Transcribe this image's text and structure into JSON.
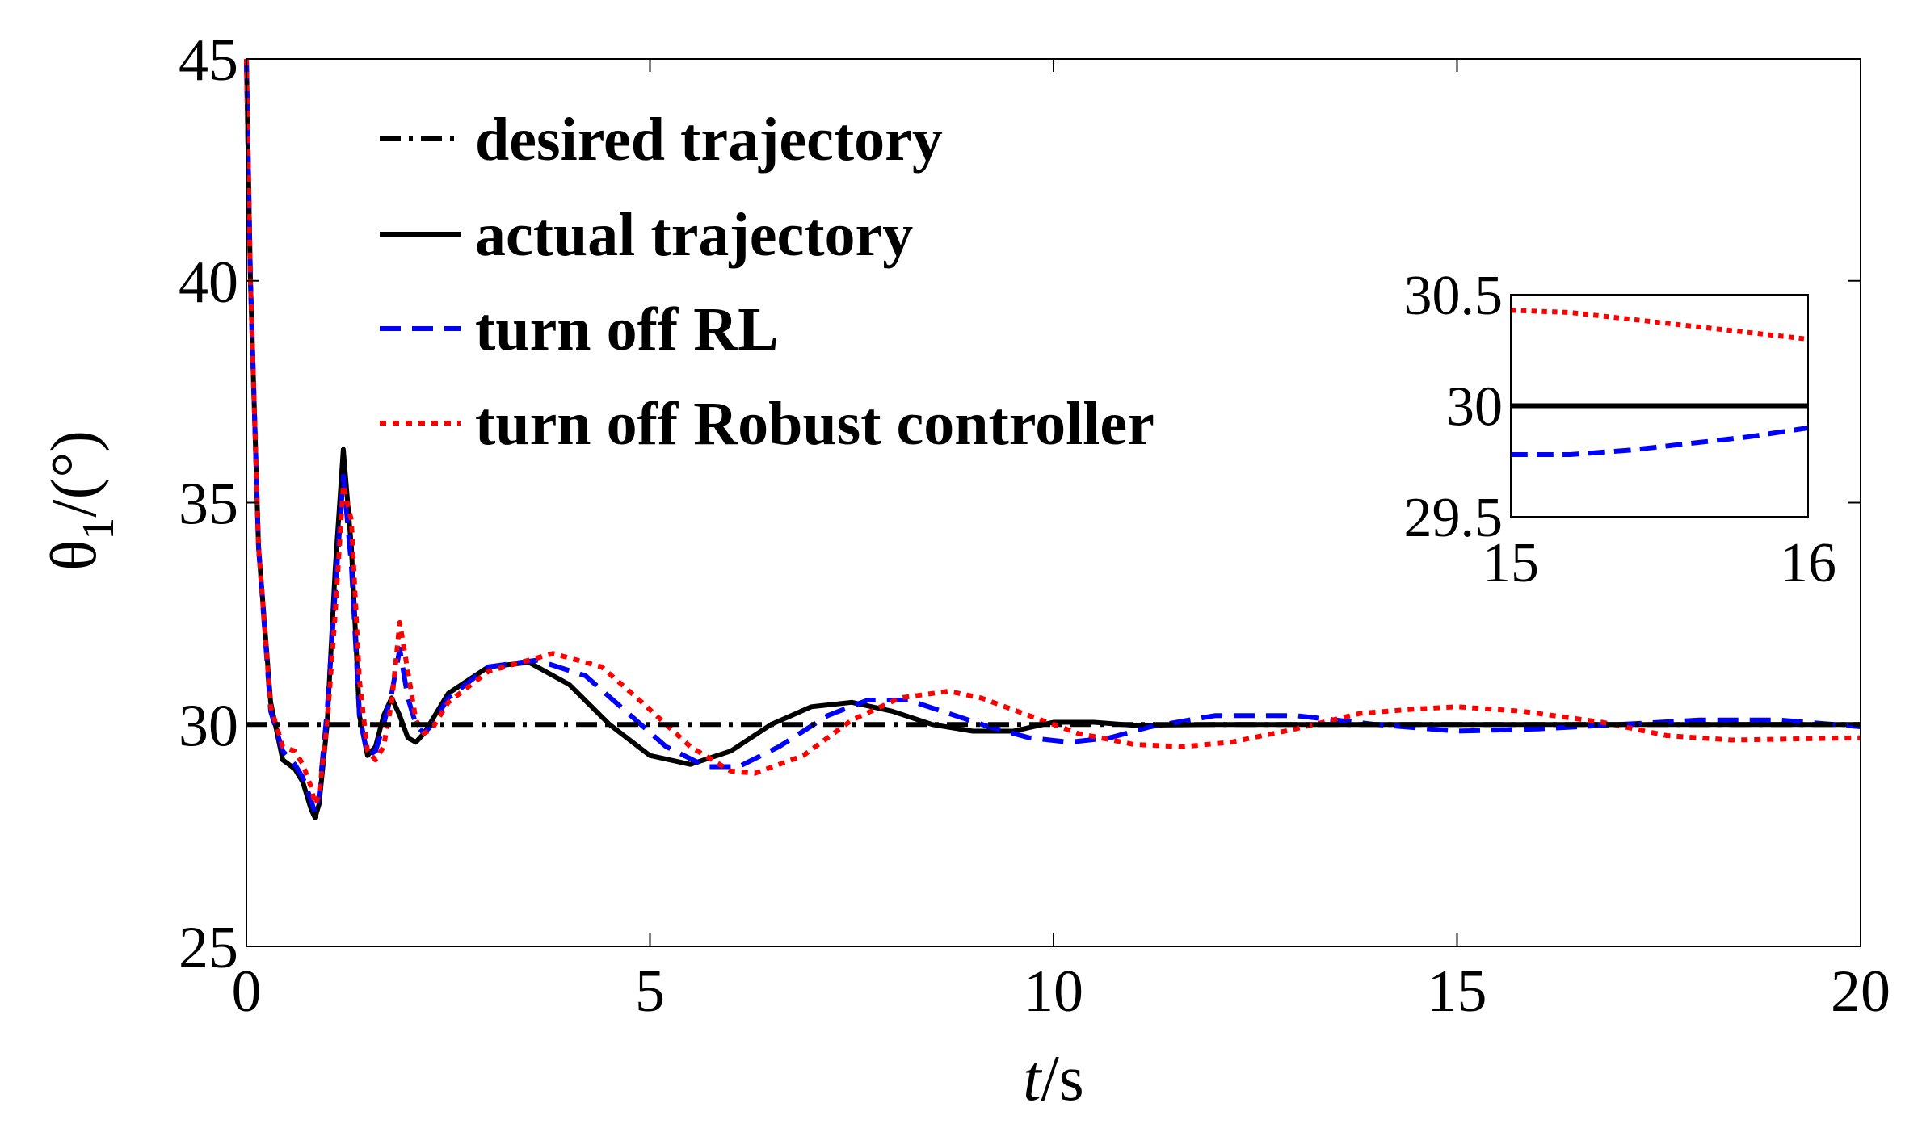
{
  "chart_data": [
    {
      "type": "line",
      "title": "",
      "xlabel_italic": "t",
      "xlabel_unit": "/s",
      "ylabel_symbol": "θ",
      "ylabel_subscript": "1",
      "ylabel_unit": "/(°)",
      "xlim": [
        0,
        20
      ],
      "ylim": [
        25,
        45
      ],
      "xticks": [
        "0",
        "5",
        "10",
        "15",
        "20"
      ],
      "yticks": [
        "25",
        "30",
        "35",
        "40",
        "45"
      ],
      "grid": false,
      "legend_position": "top-left",
      "series": [
        {
          "name": "desired trajectory",
          "color": "#000000",
          "style": "dash-dot",
          "x": [
            0,
            20
          ],
          "y": [
            30,
            30
          ]
        },
        {
          "name": "actual trajectory",
          "color": "#000000",
          "style": "solid",
          "x": [
            0,
            0.05,
            0.15,
            0.3,
            0.45,
            0.6,
            0.7,
            0.8,
            0.85,
            0.9,
            1.0,
            1.1,
            1.2,
            1.3,
            1.4,
            1.5,
            1.6,
            1.7,
            1.8,
            1.9,
            2.0,
            2.1,
            2.2,
            2.3,
            2.5,
            3.0,
            3.5,
            4.0,
            4.5,
            5.0,
            5.5,
            6.0,
            6.5,
            7.0,
            7.5,
            8.0,
            8.5,
            9.0,
            9.5,
            10.0,
            10.5,
            11.0,
            12.0,
            13.0,
            14.0,
            15.0,
            16.0,
            17.0,
            18.0,
            19.0,
            20.0
          ],
          "y": [
            45,
            40,
            34,
            30.5,
            29.2,
            29.0,
            28.7,
            28.1,
            27.9,
            28.2,
            30.0,
            33.5,
            36.2,
            34.0,
            30.2,
            29.3,
            29.5,
            30.2,
            30.6,
            30.2,
            29.7,
            29.6,
            29.8,
            30.1,
            30.7,
            31.3,
            31.4,
            30.9,
            30.0,
            29.3,
            29.1,
            29.4,
            30.0,
            30.4,
            30.5,
            30.3,
            30.0,
            29.85,
            29.85,
            30.05,
            30.05,
            29.98,
            30.0,
            30.0,
            30.0,
            30.0,
            30.0,
            30.0,
            30.0,
            30.0,
            30.0
          ]
        },
        {
          "name": "turn off RL",
          "color": "#0000ff",
          "style": "dashed",
          "x": [
            0,
            0.05,
            0.15,
            0.3,
            0.45,
            0.6,
            0.7,
            0.8,
            0.85,
            0.9,
            1.0,
            1.1,
            1.2,
            1.3,
            1.4,
            1.5,
            1.6,
            1.7,
            1.8,
            1.9,
            2.0,
            2.1,
            2.2,
            2.3,
            2.5,
            3.0,
            3.6,
            4.2,
            4.7,
            5.2,
            5.7,
            6.1,
            6.6,
            7.2,
            7.7,
            8.2,
            8.7,
            9.2,
            9.7,
            10.2,
            10.7,
            11.2,
            12.0,
            13.0,
            14.0,
            15.0,
            16.0,
            17.0,
            18.0,
            19.0,
            20.0
          ],
          "y": [
            45,
            40,
            34,
            30.3,
            29.4,
            29.1,
            28.8,
            28.3,
            28.0,
            28.4,
            30.3,
            33.0,
            35.6,
            33.6,
            30.2,
            29.3,
            29.4,
            30.0,
            30.7,
            31.7,
            30.6,
            30.0,
            29.8,
            30.0,
            30.6,
            31.3,
            31.45,
            31.1,
            30.3,
            29.5,
            29.05,
            29.05,
            29.5,
            30.2,
            30.55,
            30.55,
            30.25,
            29.95,
            29.7,
            29.6,
            29.7,
            29.95,
            30.2,
            30.2,
            30.0,
            29.85,
            29.9,
            30.0,
            30.1,
            30.1,
            29.95
          ]
        },
        {
          "name": "turn off Robust controller",
          "color": "#ff0000",
          "style": "dotted",
          "x": [
            0,
            0.05,
            0.15,
            0.3,
            0.45,
            0.6,
            0.7,
            0.8,
            0.85,
            0.9,
            1.0,
            1.1,
            1.2,
            1.3,
            1.4,
            1.5,
            1.6,
            1.7,
            1.8,
            1.9,
            2.0,
            2.1,
            2.2,
            2.3,
            2.5,
            3.0,
            3.8,
            4.4,
            4.9,
            5.5,
            6.0,
            6.3,
            6.9,
            7.5,
            8.1,
            8.7,
            9.1,
            9.7,
            10.3,
            11.0,
            11.6,
            12.2,
            13.0,
            13.8,
            14.5,
            15.0,
            15.8,
            16.8,
            17.6,
            18.4,
            20.0
          ],
          "y": [
            45,
            40,
            34,
            30.4,
            29.5,
            29.4,
            29.1,
            28.6,
            28.2,
            28.4,
            30.0,
            32.5,
            35.4,
            34.6,
            31.0,
            29.4,
            29.2,
            29.5,
            30.5,
            32.3,
            31.2,
            30.1,
            29.8,
            29.9,
            30.5,
            31.2,
            31.6,
            31.3,
            30.5,
            29.5,
            28.95,
            28.9,
            29.3,
            30.1,
            30.6,
            30.75,
            30.6,
            30.2,
            29.8,
            29.55,
            29.5,
            29.6,
            29.9,
            30.25,
            30.35,
            30.4,
            30.3,
            30.05,
            29.75,
            29.65,
            29.7
          ]
        }
      ]
    },
    {
      "type": "line",
      "title": "",
      "xlim": [
        15,
        16
      ],
      "ylim": [
        29.5,
        30.5
      ],
      "xticks": [
        "15",
        "16"
      ],
      "yticks": [
        "29.5",
        "30",
        "30.5"
      ],
      "grid": false,
      "series": [
        {
          "name": "desired trajectory",
          "color": "#000000",
          "style": "dash-dot",
          "x": [
            15,
            16
          ],
          "y": [
            30,
            30
          ]
        },
        {
          "name": "actual trajectory",
          "color": "#000000",
          "style": "solid",
          "x": [
            15,
            16
          ],
          "y": [
            30,
            30
          ]
        },
        {
          "name": "turn off RL",
          "color": "#0000ff",
          "style": "dashed",
          "x": [
            15,
            15.2,
            15.4,
            15.6,
            15.8,
            16
          ],
          "y": [
            29.78,
            29.78,
            29.8,
            29.83,
            29.86,
            29.9
          ]
        },
        {
          "name": "turn off Robust controller",
          "color": "#ff0000",
          "style": "dotted",
          "x": [
            15,
            15.2,
            15.4,
            15.6,
            15.8,
            16
          ],
          "y": [
            30.43,
            30.42,
            30.39,
            30.36,
            30.33,
            30.3
          ]
        }
      ]
    }
  ]
}
